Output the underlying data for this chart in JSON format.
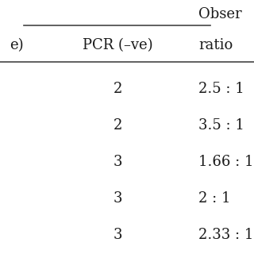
{
  "rows": [
    [
      "2",
      "2.5 : 1"
    ],
    [
      "2",
      "3.5 : 1"
    ],
    [
      "3",
      "1.66 : 1"
    ],
    [
      "3",
      "2 : 1"
    ],
    [
      "3",
      "2.33 : 1"
    ]
  ],
  "bg_color": "#ffffff",
  "text_color": "#1a1a1a",
  "line_color": "#444444",
  "font_size": 13,
  "header_font_size": 13
}
